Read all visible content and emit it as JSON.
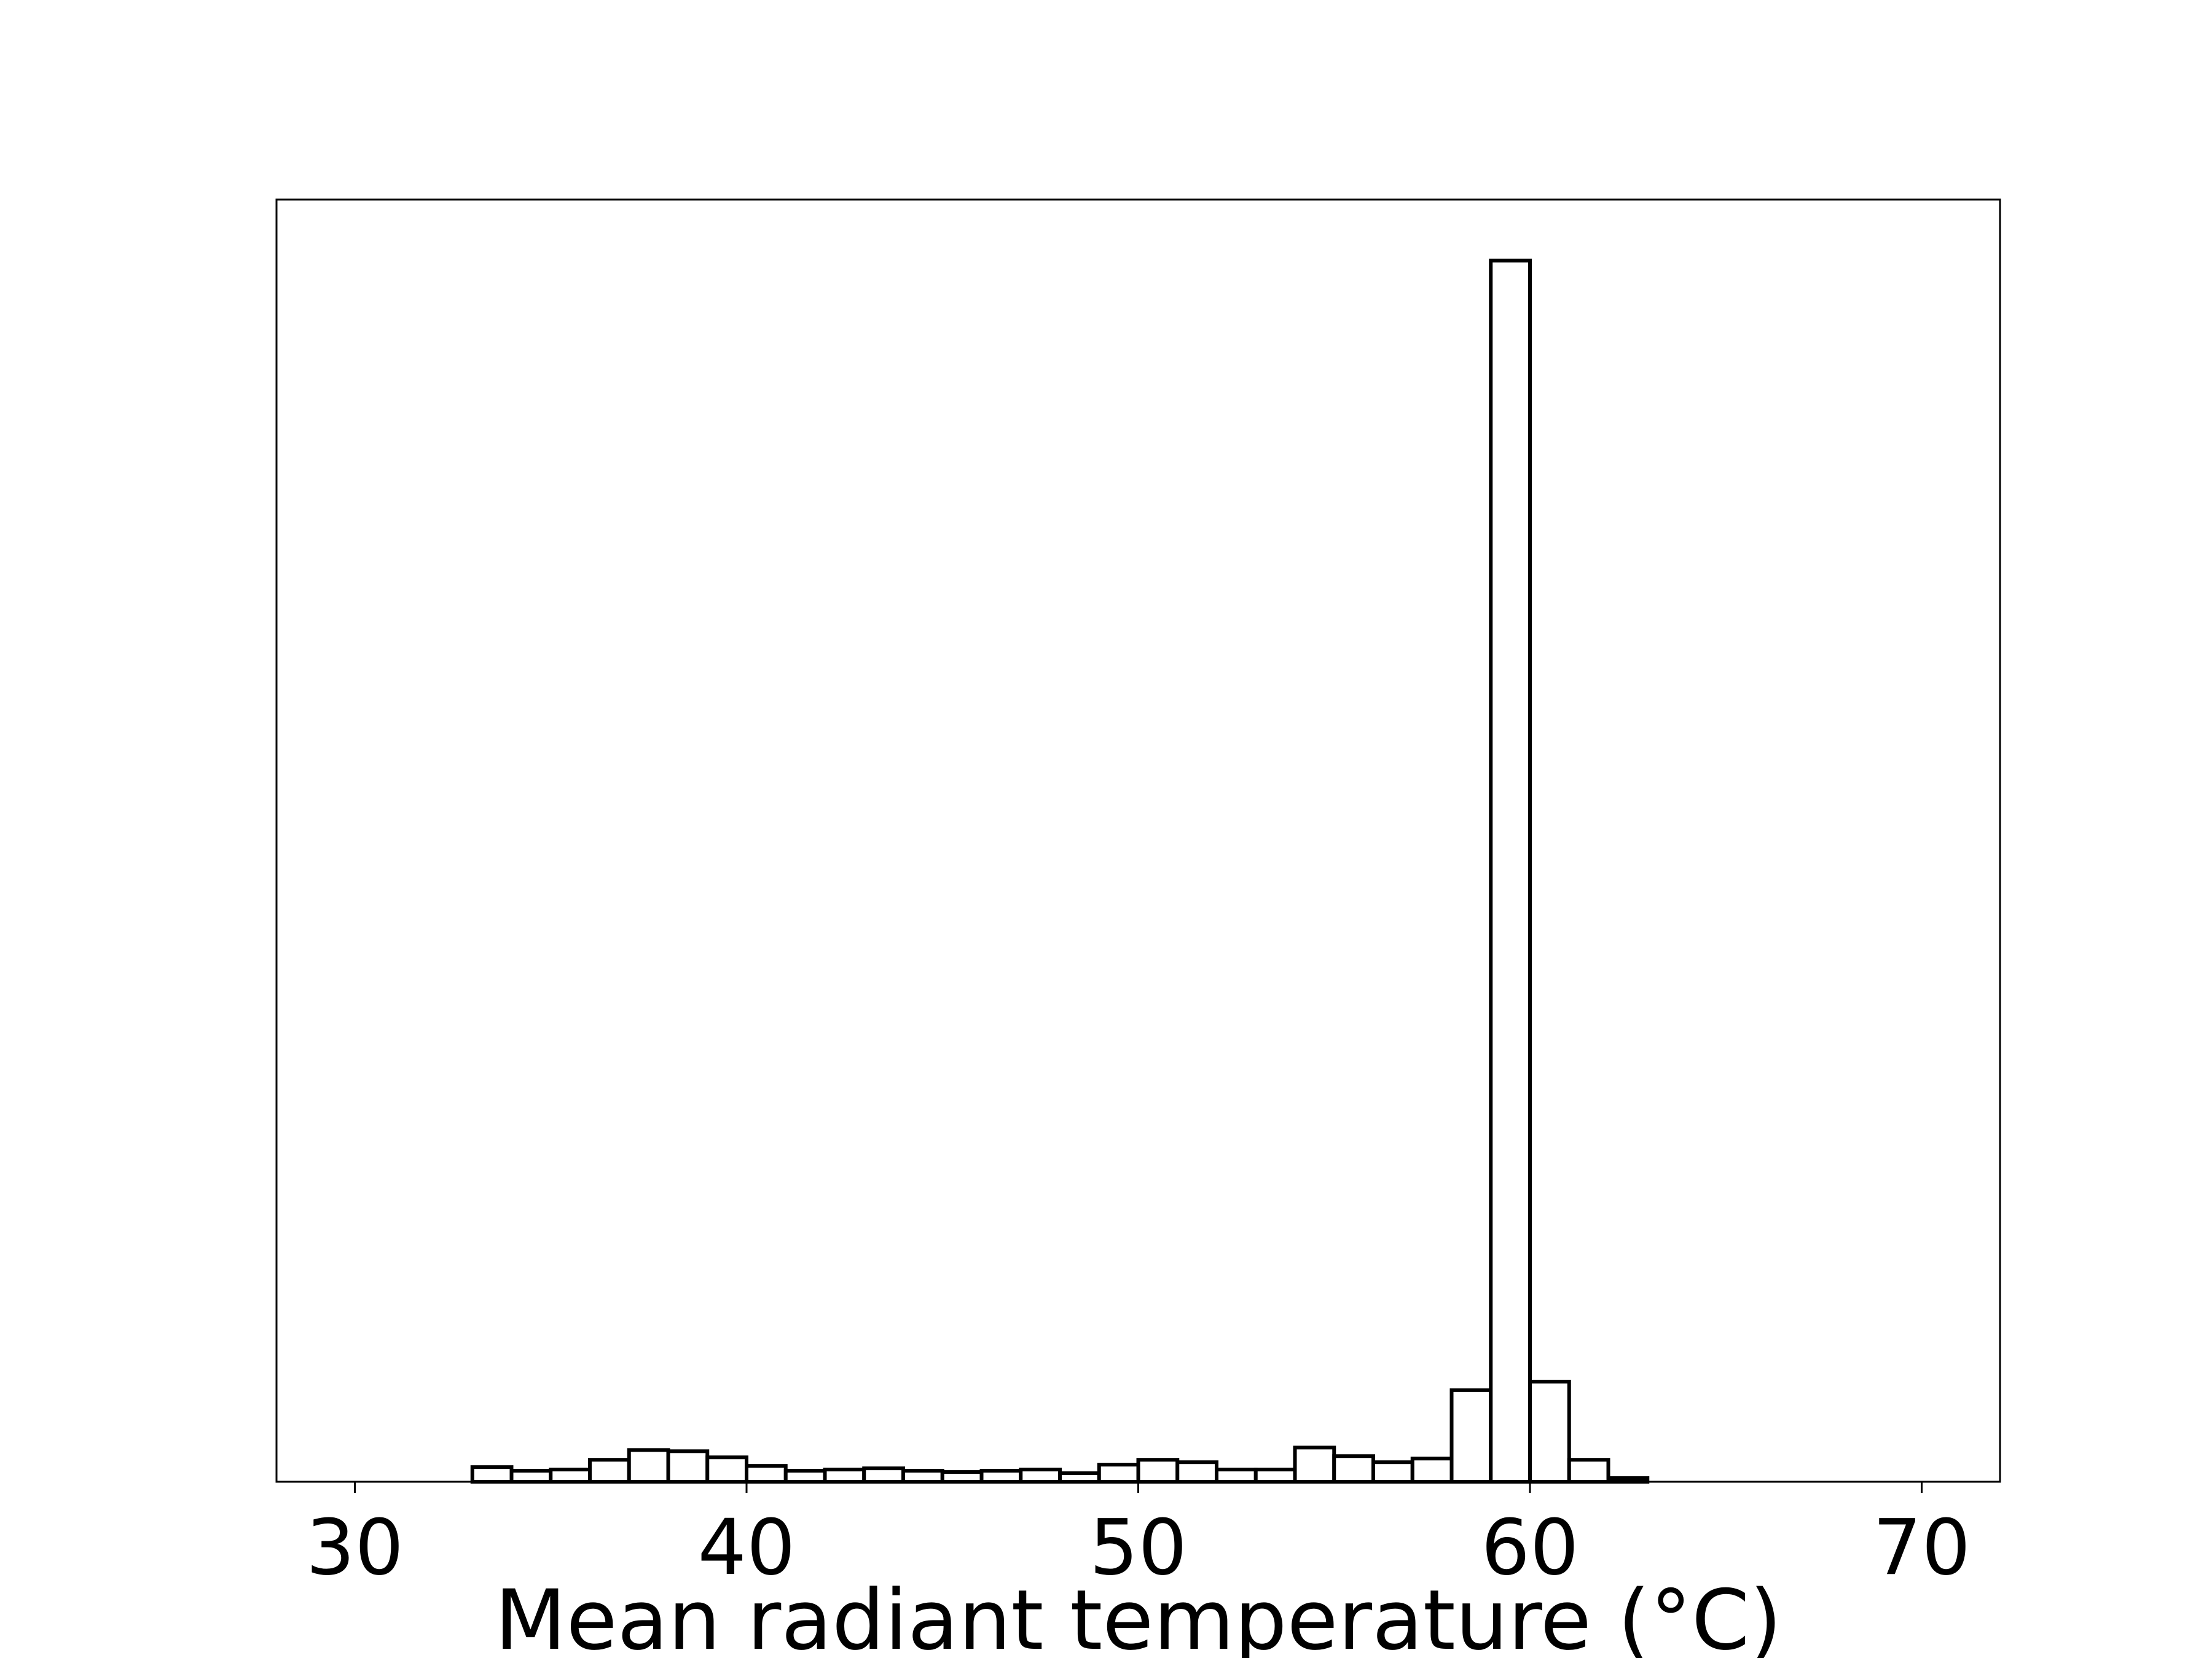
{
  "chart_data": {
    "type": "bar",
    "subtype": "histogram",
    "xlabel": "Mean radiant temperature ($^\\circ$C)",
    "xlabel_display": "Mean radiant temperature (°C)",
    "ylabel": "",
    "xlim": [
      28,
      72
    ],
    "ylim": [
      0,
      105
    ],
    "y_axis_ticks_shown": false,
    "grid": false,
    "bar_fill": "#ffffff",
    "bar_edge": "#000000",
    "bin_width": 1,
    "x_ticks": [
      30,
      40,
      50,
      60,
      70
    ],
    "x_tick_labels": [
      "30",
      "40",
      "50",
      "60",
      "70"
    ],
    "bin_starts": [
      30,
      31,
      32,
      33,
      34,
      35,
      36,
      37,
      38,
      39,
      40,
      41,
      42,
      43,
      44,
      45,
      46,
      47,
      48,
      49,
      50,
      51,
      52,
      53,
      54,
      55,
      56,
      57,
      58,
      59,
      60,
      61,
      62,
      63,
      64,
      65,
      66,
      67,
      68,
      69
    ],
    "values": [
      0,
      0,
      0,
      1.2,
      0.9,
      1.0,
      1.8,
      2.6,
      2.5,
      2.0,
      1.3,
      0.9,
      1.0,
      1.1,
      0.9,
      0.8,
      0.9,
      1.0,
      0.7,
      1.4,
      1.8,
      1.6,
      1.0,
      1.0,
      2.8,
      2.1,
      1.6,
      1.9,
      7.5,
      100,
      8.2,
      1.8,
      0.3,
      0,
      0,
      0,
      0,
      0,
      0,
      0
    ]
  }
}
